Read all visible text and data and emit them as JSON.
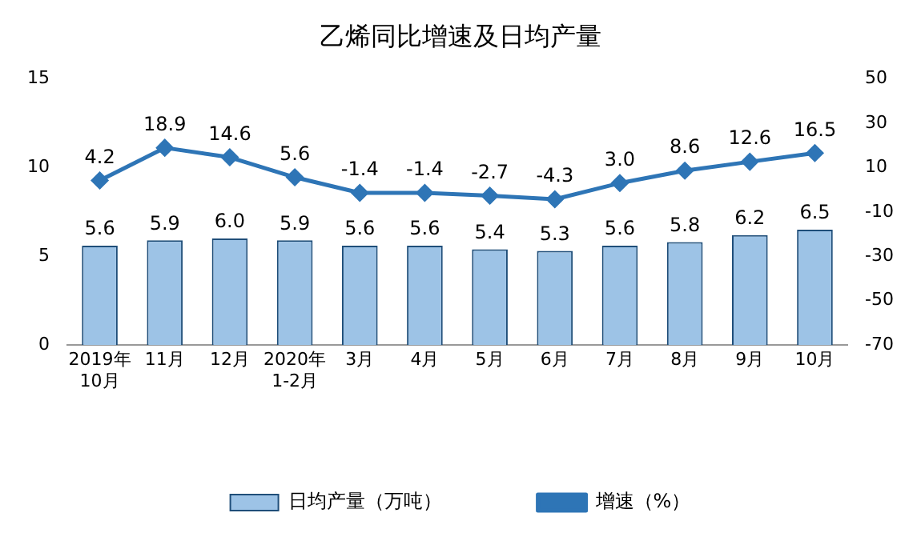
{
  "chart_data": {
    "type": "bar",
    "title": "乙烯同比增速及日均产量",
    "categories": [
      "2019年\n10月",
      "11月",
      "12月",
      "2020年\n1-2月",
      "3月",
      "4月",
      "5月",
      "6月",
      "7月",
      "8月",
      "9月",
      "10月"
    ],
    "series": [
      {
        "name": "日均产量（万吨）",
        "color": "#9dc3e6",
        "values": [
          5.6,
          5.9,
          6.0,
          5.9,
          5.6,
          5.6,
          5.4,
          5.3,
          5.6,
          5.8,
          6.2,
          6.5
        ],
        "value_labels": [
          "5.6",
          "5.9",
          "6.0",
          "5.9",
          "5.6",
          "5.6",
          "5.4",
          "5.3",
          "5.6",
          "5.8",
          "6.2",
          "6.5"
        ]
      },
      {
        "name": "增速（%）",
        "type": "line",
        "axis": "y2",
        "color": "#2e75b6",
        "marker": "diamond",
        "values": [
          4.2,
          18.9,
          14.6,
          5.6,
          -1.4,
          -1.4,
          -2.7,
          -4.3,
          3.0,
          8.6,
          12.6,
          16.5
        ],
        "value_labels": [
          "4.2",
          "18.9",
          "14.6",
          "5.6",
          "-1.4",
          "-1.4",
          "-2.7",
          "-4.3",
          "3.0",
          "8.6",
          "12.6",
          "16.5"
        ]
      }
    ],
    "ylim": [
      0,
      15
    ],
    "yticks": [
      0,
      5,
      10,
      15
    ],
    "y2lim": [
      -70,
      50
    ],
    "y2ticks": [
      -70,
      -50,
      -30,
      -10,
      10,
      30,
      50
    ],
    "grid": false,
    "legend": "bottom"
  }
}
